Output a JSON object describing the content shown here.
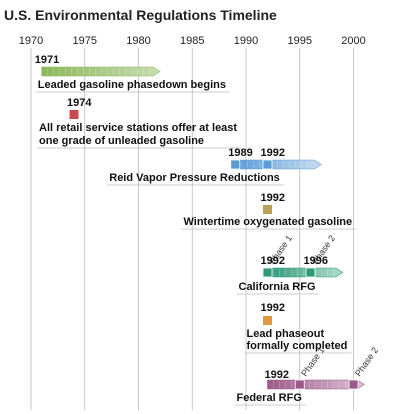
{
  "title": "U.S. Environmental Regulations Timeline",
  "axis": {
    "ticks": [
      "1970",
      "1975",
      "1980",
      "1985",
      "1990",
      "1995",
      "2000"
    ],
    "range": [
      1970,
      2001
    ]
  },
  "colors": {
    "gridline": "#bbbbbb",
    "green": "#8db85a",
    "green_light": "#c7ddb0",
    "red": "#c84a4a",
    "blue": "#5b9bd5",
    "blue_light": "#c7ddf0",
    "gold": "#b8a055",
    "teal": "#2e9a78",
    "teal_light": "#b0dccc",
    "orange": "#e09a3e",
    "purple": "#9b5a8a",
    "purple_light": "#dcc0d4"
  },
  "events": [
    {
      "id": "leaded-phasedown",
      "years": [
        "1971"
      ],
      "start": 1971,
      "end": 1982,
      "label_lines": [
        "Leaded gasoline phasedown begins"
      ],
      "color": "green",
      "light": "green_light",
      "arrow": true
    },
    {
      "id": "unleaded-grade",
      "years": [
        "1974"
      ],
      "start": 1974,
      "label_lines": [
        "All retail service stations offer at least",
        "one grade of unleaded gasoline"
      ],
      "color": "red"
    },
    {
      "id": "reid-vapor",
      "years": [
        "1989",
        "1992"
      ],
      "start": 1989,
      "end": 1997,
      "markers": [
        1989,
        1992
      ],
      "label_lines": [
        "Reid Vapor Pressure Reductions"
      ],
      "color": "blue",
      "light": "blue_light",
      "arrow": true
    },
    {
      "id": "wintertime-oxygenated",
      "years": [
        "1992"
      ],
      "start": 1992,
      "label_lines": [
        "Wintertime oxygenated gasoline"
      ],
      "color": "gold"
    },
    {
      "id": "california-rfg",
      "years": [
        "1992",
        "1996"
      ],
      "start": 1992,
      "end": 1999,
      "markers": [
        1992,
        1996
      ],
      "label_lines": [
        "California RFG"
      ],
      "phases": [
        "Phase 1",
        "Phase 2"
      ],
      "color": "teal",
      "light": "teal_light",
      "arrow": true
    },
    {
      "id": "lead-phaseout",
      "years": [
        "1992"
      ],
      "start": 1992,
      "label_lines": [
        "Lead phaseout",
        "formally completed"
      ],
      "color": "orange"
    },
    {
      "id": "federal-rfg",
      "years": [
        "1992"
      ],
      "start": 1992,
      "end": 2001,
      "markers": [
        1995,
        2000
      ],
      "label_lines": [
        "Federal RFG"
      ],
      "phases": [
        "Phase 1",
        "Phase 2"
      ],
      "color": "purple",
      "light": "purple_light",
      "arrow": true
    }
  ]
}
